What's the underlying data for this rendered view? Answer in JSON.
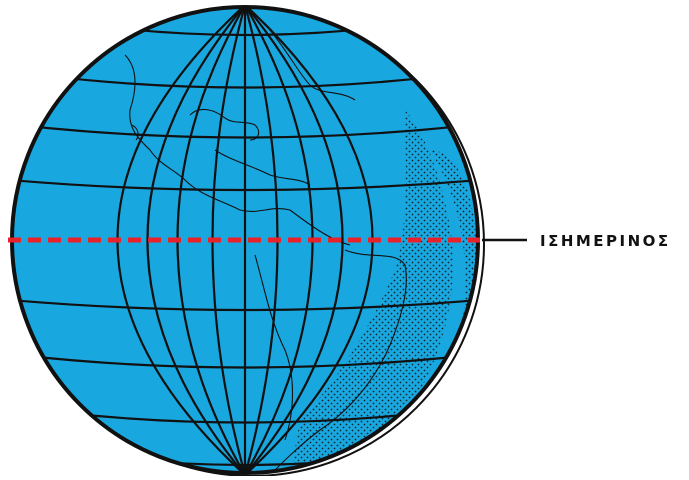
{
  "labels": {
    "equator": "ΙΣΗΜΕΡΙΝΟΣ"
  },
  "colors": {
    "ocean": "#19a7df",
    "ink": "#111111",
    "equator_line": "#e8212b",
    "background": "#ffffff"
  }
}
